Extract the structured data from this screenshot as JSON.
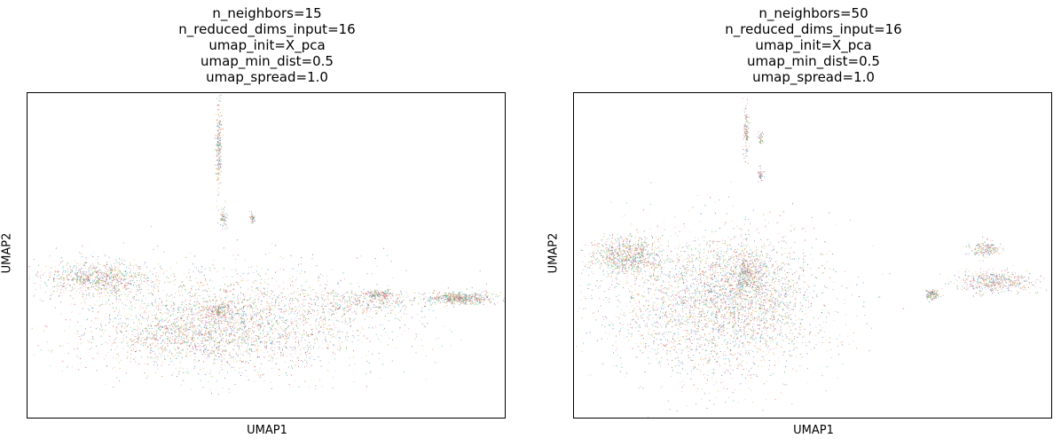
{
  "chart_data": [
    {
      "type": "scatter",
      "title_lines": [
        "n_neighbors=15",
        "n_reduced_dims_input=16",
        "umap_init=X_pca",
        "umap_min_dist=0.5",
        "umap_spread=1.0"
      ],
      "xlabel": "UMAP1",
      "ylabel": "UMAP2",
      "grid": false,
      "ticks": false,
      "point_colors": [
        "#1f77b4",
        "#ff7f0e",
        "#2ca02c",
        "#d62728",
        "#9467bd",
        "#8c564b",
        "#e377c2",
        "#7f7f7f",
        "#bcbd22",
        "#17becf",
        "#aec7e8",
        "#ffbb78",
        "#98df8a",
        "#ff9896",
        "#c5b0d5"
      ],
      "clusters": [
        {
          "cx": 0.45,
          "cy": 0.3,
          "rx": 0.33,
          "ry": 0.16,
          "n": 2600
        },
        {
          "cx": 0.15,
          "cy": 0.43,
          "rx": 0.12,
          "ry": 0.055,
          "n": 900
        },
        {
          "cx": 0.33,
          "cy": 0.25,
          "rx": 0.16,
          "ry": 0.08,
          "n": 700
        },
        {
          "cx": 0.72,
          "cy": 0.36,
          "rx": 0.12,
          "ry": 0.035,
          "n": 350
        },
        {
          "cx": 0.91,
          "cy": 0.37,
          "rx": 0.07,
          "ry": 0.018,
          "n": 550
        },
        {
          "cx": 0.74,
          "cy": 0.38,
          "rx": 0.025,
          "ry": 0.012,
          "n": 120
        },
        {
          "cx": 0.4,
          "cy": 0.33,
          "rx": 0.04,
          "ry": 0.025,
          "n": 200
        },
        {
          "cx": 0.4,
          "cy": 0.83,
          "rx": 0.006,
          "ry": 0.14,
          "n": 220
        },
        {
          "cx": 0.41,
          "cy": 0.62,
          "rx": 0.008,
          "ry": 0.03,
          "n": 60
        },
        {
          "cx": 0.47,
          "cy": 0.62,
          "rx": 0.005,
          "ry": 0.02,
          "n": 50
        }
      ]
    },
    {
      "type": "scatter",
      "title_lines": [
        "n_neighbors=50",
        "n_reduced_dims_input=16",
        "umap_init=X_pca",
        "umap_min_dist=0.5",
        "umap_spread=1.0"
      ],
      "xlabel": "UMAP1",
      "ylabel": "UMAP2",
      "grid": false,
      "ticks": false,
      "point_colors": [
        "#1f77b4",
        "#ff7f0e",
        "#2ca02c",
        "#d62728",
        "#9467bd",
        "#8c564b",
        "#e377c2",
        "#7f7f7f",
        "#bcbd22",
        "#17becf",
        "#aec7e8",
        "#ffbb78",
        "#98df8a",
        "#ff9896",
        "#c5b0d5"
      ],
      "clusters": [
        {
          "cx": 0.3,
          "cy": 0.35,
          "rx": 0.23,
          "ry": 0.22,
          "n": 3200
        },
        {
          "cx": 0.11,
          "cy": 0.5,
          "rx": 0.07,
          "ry": 0.06,
          "n": 800
        },
        {
          "cx": 0.36,
          "cy": 0.42,
          "rx": 0.1,
          "ry": 0.12,
          "n": 600
        },
        {
          "cx": 0.36,
          "cy": 0.45,
          "rx": 0.025,
          "ry": 0.05,
          "n": 200
        },
        {
          "cx": 0.88,
          "cy": 0.42,
          "rx": 0.08,
          "ry": 0.035,
          "n": 500
        },
        {
          "cx": 0.86,
          "cy": 0.52,
          "rx": 0.03,
          "ry": 0.025,
          "n": 180
        },
        {
          "cx": 0.75,
          "cy": 0.38,
          "rx": 0.015,
          "ry": 0.015,
          "n": 120
        },
        {
          "cx": 0.36,
          "cy": 0.88,
          "rx": 0.006,
          "ry": 0.08,
          "n": 120
        },
        {
          "cx": 0.39,
          "cy": 0.86,
          "rx": 0.005,
          "ry": 0.02,
          "n": 40
        },
        {
          "cx": 0.39,
          "cy": 0.75,
          "rx": 0.006,
          "ry": 0.02,
          "n": 40
        }
      ]
    }
  ]
}
